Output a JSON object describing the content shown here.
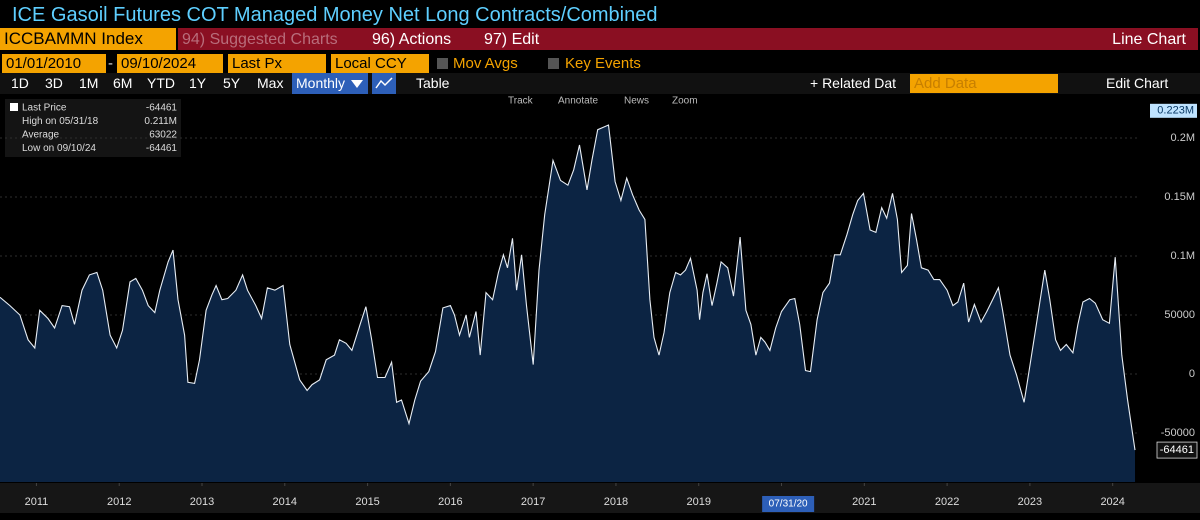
{
  "ui": {
    "title": "ICE Gasoil Futures COT Managed Money Net Long Contracts/Combined",
    "ticker": "ICCBAMMN Index",
    "menu": [
      "94) Suggested Charts",
      "96) Actions",
      "97) Edit"
    ],
    "chart_kind": "Line Chart",
    "start_date": "01/01/2010",
    "date_sep": "-",
    "end_date": "09/10/2024",
    "field": "Last Px",
    "currency": "Local CCY",
    "checks": [
      "Mov Avgs",
      "Key Events"
    ],
    "periods": [
      "1D",
      "3D",
      "1M",
      "6M",
      "YTD",
      "1Y",
      "5Y",
      "Max"
    ],
    "frequency": "Monthly",
    "table": "Table",
    "related": "+ Related Dat",
    "add_data": "Add Data",
    "edit_chart": "Edit Chart",
    "chart_tools": [
      "Track",
      "Annotate",
      "News",
      "Zoom"
    ],
    "legend": [
      {
        "label": "Last Price",
        "value": "-64461"
      },
      {
        "label": "High on 05/31/18",
        "value": "0.211M"
      },
      {
        "label": "Average",
        "value": "63022"
      },
      {
        "label": "Low on 09/10/24",
        "value": "-64461"
      }
    ]
  },
  "chart_data": {
    "type": "area",
    "color": "#e8eef5",
    "fill": "#0c2443",
    "grid": true,
    "x": [
      2011.06,
      2011.18,
      2011.3,
      2011.4,
      2011.48,
      2011.54,
      2011.64,
      2011.72,
      2011.81,
      2011.9,
      2011.96,
      2012.05,
      2012.14,
      2012.23,
      2012.3,
      2012.39,
      2012.47,
      2012.54,
      2012.63,
      2012.7,
      2012.78,
      2012.85,
      2012.93,
      2012.99,
      2013.09,
      2013.15,
      2013.21,
      2013.29,
      2013.33,
      2013.41,
      2013.47,
      2013.55,
      2013.62,
      2013.67,
      2013.74,
      2013.81,
      2013.91,
      2013.99,
      2014.05,
      2014.15,
      2014.22,
      2014.29,
      2014.38,
      2014.48,
      2014.56,
      2014.68,
      2014.77,
      2014.83,
      2014.92,
      2015.0,
      2015.1,
      2015.16,
      2015.24,
      2015.31,
      2015.41,
      2015.48,
      2015.55,
      2015.62,
      2015.71,
      2015.79,
      2015.85,
      2015.91,
      2016.0,
      2016.07,
      2016.14,
      2016.24,
      2016.32,
      2016.41,
      2016.5,
      2016.55,
      2016.61,
      2016.69,
      2016.73,
      2016.81,
      2016.86,
      2016.93,
      2017.01,
      2017.08,
      2017.14,
      2017.19,
      2017.25,
      2017.3,
      2017.36,
      2017.42,
      2017.5,
      2017.57,
      2017.64,
      2017.74,
      2017.83,
      2017.92,
      2017.99,
      2018.06,
      2018.15,
      2018.21,
      2018.28,
      2018.41,
      2018.49,
      2018.56,
      2018.63,
      2018.7,
      2018.78,
      2018.85,
      2018.91,
      2018.96,
      2019.02,
      2019.08,
      2019.15,
      2019.22,
      2019.28,
      2019.34,
      2019.4,
      2019.48,
      2019.51,
      2019.55,
      2019.6,
      2019.66,
      2019.72,
      2019.77,
      2019.85,
      2019.92,
      2020.0,
      2020.07,
      2020.13,
      2020.19,
      2020.25,
      2020.3,
      2020.36,
      2020.43,
      2020.5,
      2020.6,
      2020.66,
      2020.72,
      2020.79,
      2020.85,
      2020.93,
      2021.0,
      2021.08,
      2021.14,
      2021.21,
      2021.29,
      2021.36,
      2021.42,
      2021.49,
      2021.57,
      2021.64,
      2021.71,
      2021.77,
      2021.84,
      2021.9,
      2021.95,
      2022.02,
      2022.07,
      2022.13,
      2022.19,
      2022.27,
      2022.34,
      2022.41,
      2022.5,
      2022.57,
      2022.63,
      2022.7,
      2022.76,
      2022.83,
      2022.91,
      2022.98,
      2023.05,
      2023.12,
      2023.17,
      2023.26,
      2023.34,
      2023.43,
      2023.5,
      2023.59,
      2023.68,
      2023.74,
      2023.81,
      2023.87,
      2023.94,
      2024.02,
      2024.08,
      2024.14,
      2024.22,
      2024.29,
      2024.38,
      2024.46,
      2024.53,
      2024.61,
      2024.68,
      2024.77
    ],
    "values": [
      65000,
      58000,
      50000,
      29000,
      22000,
      54000,
      47000,
      39000,
      58000,
      57000,
      42000,
      71000,
      84000,
      86000,
      71000,
      33000,
      22000,
      37000,
      78000,
      81000,
      71000,
      58000,
      52000,
      71000,
      95000,
      105000,
      63000,
      33000,
      -7000,
      -8000,
      12000,
      54000,
      67000,
      75000,
      63000,
      64000,
      71000,
      84000,
      71000,
      58000,
      47000,
      73000,
      71000,
      75000,
      25000,
      -5000,
      -14000,
      -9000,
      -5000,
      12000,
      16000,
      29000,
      26000,
      20000,
      42000,
      57000,
      29000,
      -3000,
      -3000,
      10000,
      -24000,
      -22000,
      -42000,
      -22000,
      -6000,
      2000,
      19000,
      56000,
      58000,
      50000,
      33000,
      50000,
      31000,
      53000,
      16000,
      69000,
      63000,
      86000,
      101000,
      90000,
      115000,
      71000,
      101000,
      58000,
      8000,
      88000,
      135000,
      181000,
      164000,
      160000,
      173000,
      194000,
      156000,
      181000,
      207000,
      211000,
      163000,
      147000,
      166000,
      152000,
      139000,
      131000,
      63000,
      31000,
      16000,
      35000,
      69000,
      86000,
      84000,
      88000,
      98000,
      71000,
      46000,
      69000,
      85000,
      58000,
      77000,
      95000,
      90000,
      66000,
      116000,
      54000,
      42000,
      16000,
      31000,
      27000,
      20000,
      39000,
      53000,
      63000,
      64000,
      42000,
      3000,
      2000,
      46000,
      69000,
      77000,
      101000,
      101000,
      118000,
      135000,
      147000,
      153000,
      122000,
      120000,
      141000,
      132000,
      153000,
      131000,
      86000,
      92000,
      136000,
      114000,
      90000,
      88000,
      80000,
      80000,
      71000,
      58000,
      61000,
      77000,
      44000,
      59000,
      44000,
      53000,
      63000,
      73000,
      54000,
      16000,
      -1000,
      -24000,
      7000,
      47000,
      88000,
      63000,
      29000,
      20000,
      25000,
      18000,
      42000,
      61000,
      64000,
      60000,
      46000,
      43000,
      99000,
      16000,
      -22000,
      -64461
    ],
    "xlim": [
      2011.06,
      2024.83
    ],
    "xticks": [
      {
        "value": 2011.5,
        "label": "2011"
      },
      {
        "value": 2012.5,
        "label": "2012"
      },
      {
        "value": 2013.5,
        "label": "2013"
      },
      {
        "value": 2014.5,
        "label": "2014"
      },
      {
        "value": 2015.5,
        "label": "2015"
      },
      {
        "value": 2016.5,
        "label": "2016"
      },
      {
        "value": 2017.5,
        "label": "2017"
      },
      {
        "value": 2018.5,
        "label": "2018"
      },
      {
        "value": 2019.5,
        "label": "2019"
      },
      {
        "value": 2020.5,
        "label": "2020"
      },
      {
        "value": 2021.5,
        "label": "2021"
      },
      {
        "value": 2022.5,
        "label": "2022"
      },
      {
        "value": 2023.5,
        "label": "2023"
      },
      {
        "value": 2024.5,
        "label": "2024"
      }
    ],
    "ylim": [
      -91500,
      234700
    ],
    "yticks": [
      -50000,
      0,
      50000,
      {
        "value": 100000,
        "label": "0.1M"
      },
      {
        "value": 150000,
        "label": "0.15M"
      },
      {
        "value": 200000,
        "label": "0.2M"
      }
    ],
    "top_marker": {
      "value": 223000,
      "label": "0.223M"
    },
    "cursor": {
      "value": 2020.58,
      "label": "07/31/20"
    }
  }
}
